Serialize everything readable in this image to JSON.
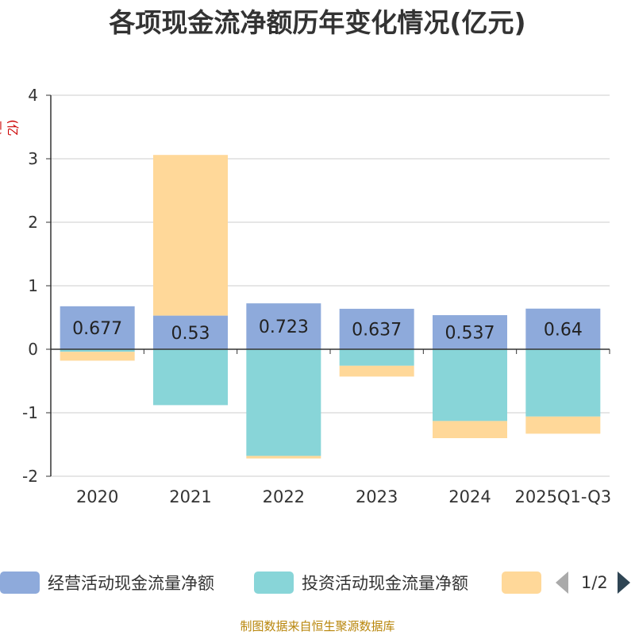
{
  "chart_data": {
    "type": "bar",
    "stacked": true,
    "title": "各项现金流净额历年变化情况(亿元)",
    "ylabel": "(亿元)",
    "ylim": [
      -2,
      4
    ],
    "yticks": [
      4,
      3,
      2,
      1,
      0,
      -1,
      -2
    ],
    "categories": [
      "2020",
      "2021",
      "2022",
      "2023",
      "2024",
      "2025Q1-Q3"
    ],
    "series": [
      {
        "name": "经营活动现金流量净额",
        "color": "#8eaadb",
        "values": [
          0.677,
          0.53,
          0.723,
          0.637,
          0.537,
          0.64
        ]
      },
      {
        "name": "投资活动现金流量净额",
        "color": "#88d5d8",
        "values": [
          -0.04,
          -0.88,
          -1.68,
          -0.26,
          -1.13,
          -1.06
        ]
      },
      {
        "name": "",
        "color": "#ffd899",
        "values": [
          -0.14,
          2.53,
          -0.04,
          -0.17,
          -0.27,
          -0.27
        ]
      }
    ],
    "data_labels": [
      "0.677",
      "0.53",
      "0.723",
      "0.637",
      "0.537",
      "0.64"
    ]
  },
  "legend": {
    "items": [
      {
        "label": "经营活动现金流量净额",
        "color": "#8eaadb"
      },
      {
        "label": "投资活动现金流量净额",
        "color": "#88d5d8"
      },
      {
        "label": "",
        "color": "#ffd899"
      }
    ],
    "page": "1/2"
  },
  "footer": "制图数据来自恒生聚源数据库"
}
